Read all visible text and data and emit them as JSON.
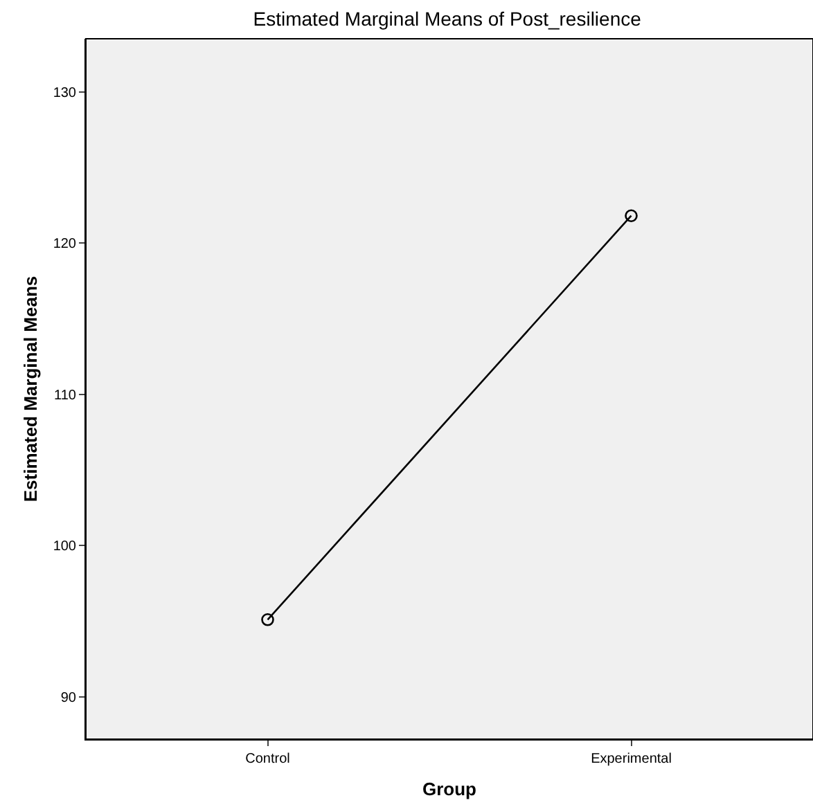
{
  "chart_data": {
    "type": "line",
    "title": "Estimated Marginal Means of Post_resilience",
    "xlabel": "Group",
    "ylabel": "Estimated Marginal Means",
    "categories": [
      "Control",
      "Experimental"
    ],
    "series": [
      {
        "color": "#000000",
        "values": [
          95.1,
          121.8
        ]
      }
    ],
    "ylim": [
      87.2,
      133.5
    ],
    "yticks": [
      90,
      100,
      110,
      120,
      130
    ],
    "marker": "circle",
    "line_style": "solid",
    "grid": false,
    "legend": false
  }
}
